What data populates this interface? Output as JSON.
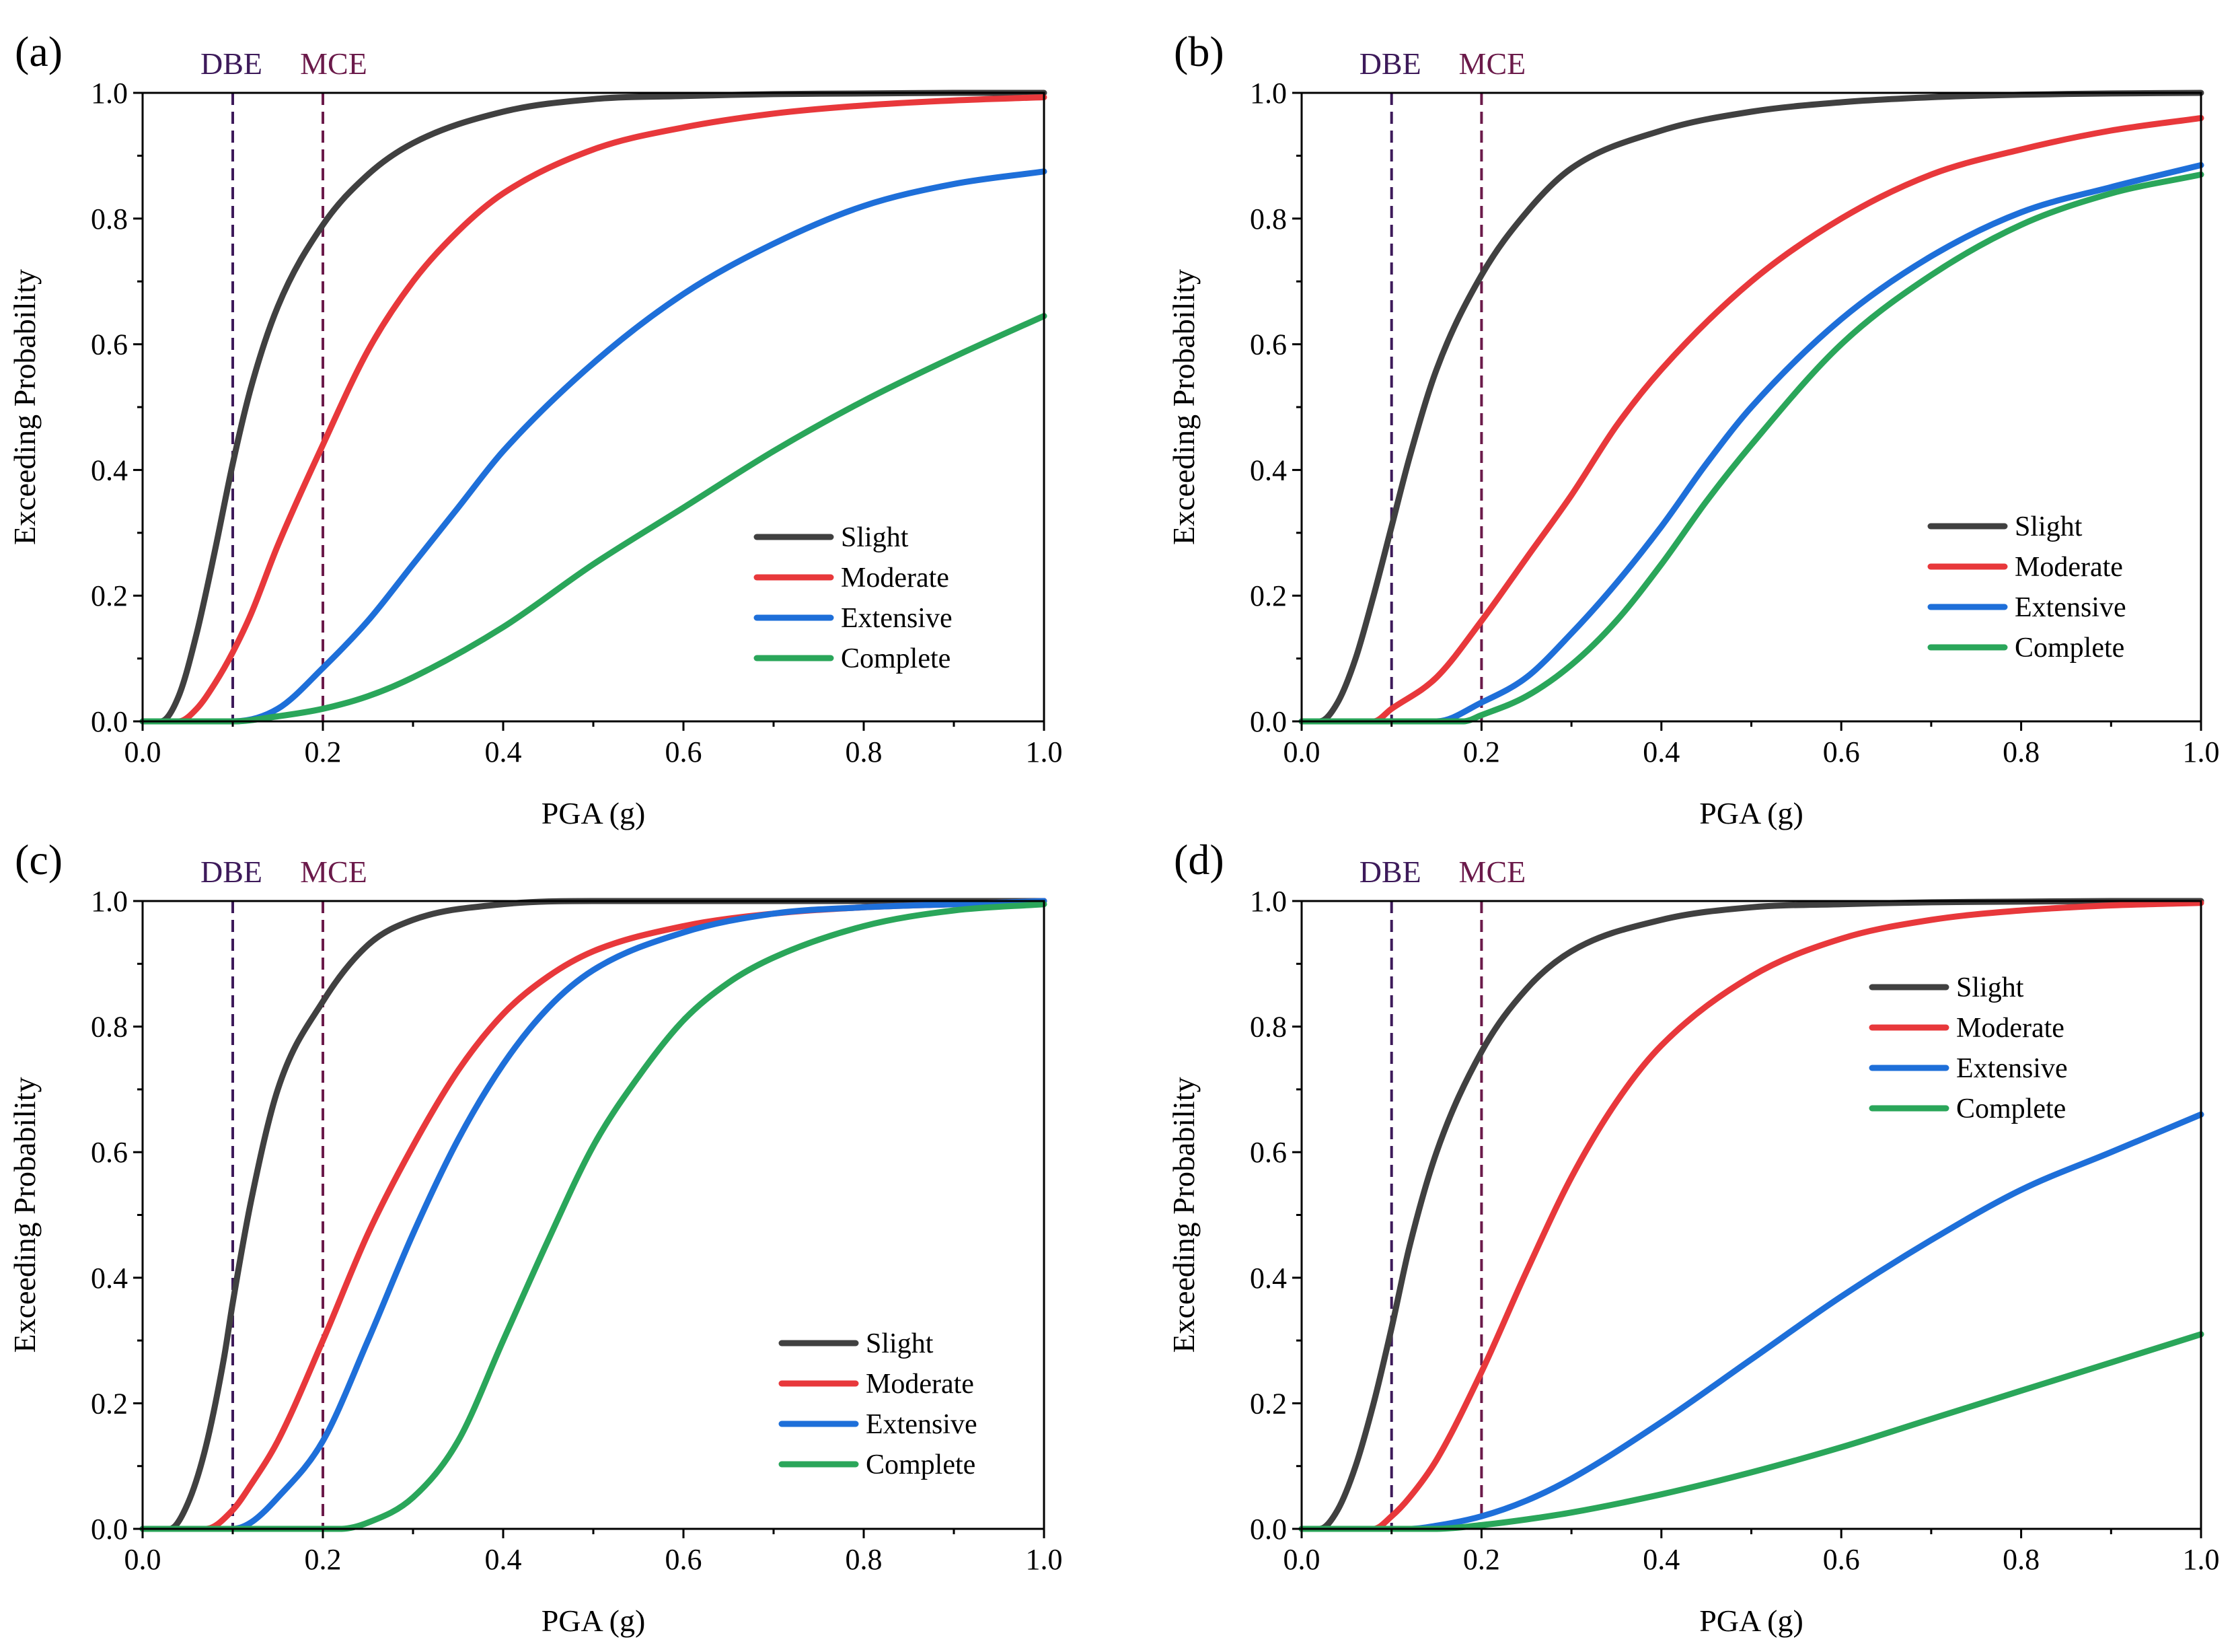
{
  "chart_data": [
    {
      "type": "line",
      "panel_label": "(a)",
      "xlabel": "PGA (g)",
      "ylabel": "Exceeding Probability",
      "xlim": [
        0,
        1
      ],
      "ylim": [
        0,
        1
      ],
      "x_ticks": [
        "0.0",
        "0.2",
        "0.4",
        "0.6",
        "0.8",
        "1.0"
      ],
      "y_ticks": [
        "0.0",
        "0.2",
        "0.4",
        "0.6",
        "0.8",
        "1.0"
      ],
      "grid": false,
      "legend_position": "center-right",
      "reference_lines": [
        {
          "label": "DBE",
          "x": 0.1,
          "color": "#3d1a5a"
        },
        {
          "label": "MCE",
          "x": 0.2,
          "color": "#6b1a4a"
        }
      ],
      "series": [
        {
          "name": "Slight",
          "color": "#404040",
          "x": [
            0,
            0.02,
            0.04,
            0.06,
            0.08,
            0.1,
            0.12,
            0.15,
            0.2,
            0.25,
            0.3,
            0.4,
            0.5,
            0.6,
            0.7,
            0.8,
            0.9,
            1.0
          ],
          "y": [
            0,
            0.0,
            0.04,
            0.14,
            0.27,
            0.41,
            0.53,
            0.66,
            0.79,
            0.87,
            0.92,
            0.97,
            0.99,
            0.995,
            0.998,
            0.999,
            1.0,
            1.0
          ]
        },
        {
          "name": "Moderate",
          "color": "#e8383b",
          "x": [
            0,
            0.04,
            0.06,
            0.08,
            0.1,
            0.12,
            0.15,
            0.2,
            0.25,
            0.3,
            0.35,
            0.4,
            0.5,
            0.6,
            0.7,
            0.8,
            0.9,
            1.0
          ],
          "y": [
            0,
            0.0,
            0.02,
            0.06,
            0.11,
            0.17,
            0.28,
            0.44,
            0.59,
            0.7,
            0.78,
            0.84,
            0.91,
            0.945,
            0.967,
            0.98,
            0.988,
            0.993
          ]
        },
        {
          "name": "Extensive",
          "color": "#1e6fd9",
          "x": [
            0,
            0.1,
            0.15,
            0.2,
            0.25,
            0.3,
            0.35,
            0.4,
            0.5,
            0.6,
            0.7,
            0.8,
            0.9,
            1.0
          ],
          "y": [
            0,
            0.0,
            0.02,
            0.085,
            0.16,
            0.25,
            0.34,
            0.43,
            0.57,
            0.68,
            0.76,
            0.82,
            0.855,
            0.875
          ]
        },
        {
          "name": "Complete",
          "color": "#2aa65a",
          "x": [
            0,
            0.1,
            0.15,
            0.2,
            0.25,
            0.3,
            0.4,
            0.5,
            0.6,
            0.7,
            0.8,
            0.9,
            1.0
          ],
          "y": [
            0,
            0.0,
            0.008,
            0.02,
            0.04,
            0.07,
            0.15,
            0.25,
            0.34,
            0.43,
            0.51,
            0.58,
            0.645
          ]
        }
      ]
    },
    {
      "type": "line",
      "panel_label": "(b)",
      "xlabel": "PGA (g)",
      "ylabel": "Exceeding Probability",
      "xlim": [
        0,
        1
      ],
      "ylim": [
        0,
        1
      ],
      "x_ticks": [
        "0.0",
        "0.2",
        "0.4",
        "0.6",
        "0.8",
        "1.0"
      ],
      "y_ticks": [
        "0.0",
        "0.2",
        "0.4",
        "0.6",
        "0.8",
        "1.0"
      ],
      "grid": false,
      "legend_position": "center-right",
      "reference_lines": [
        {
          "label": "DBE",
          "x": 0.1,
          "color": "#3d1a5a"
        },
        {
          "label": "MCE",
          "x": 0.2,
          "color": "#6b1a4a"
        }
      ],
      "series": [
        {
          "name": "Slight",
          "color": "#404040",
          "x": [
            0,
            0.02,
            0.04,
            0.06,
            0.08,
            0.1,
            0.12,
            0.15,
            0.2,
            0.25,
            0.3,
            0.4,
            0.5,
            0.6,
            0.7,
            0.8,
            0.9,
            1.0
          ],
          "y": [
            0,
            0.0,
            0.03,
            0.1,
            0.2,
            0.31,
            0.42,
            0.56,
            0.71,
            0.81,
            0.88,
            0.94,
            0.97,
            0.985,
            0.993,
            0.997,
            0.999,
            1.0
          ]
        },
        {
          "name": "Moderate",
          "color": "#e8383b",
          "x": [
            0,
            0.08,
            0.1,
            0.15,
            0.2,
            0.25,
            0.3,
            0.35,
            0.4,
            0.5,
            0.6,
            0.7,
            0.8,
            0.9,
            1.0
          ],
          "y": [
            0,
            0.0,
            0.02,
            0.07,
            0.16,
            0.26,
            0.36,
            0.47,
            0.56,
            0.7,
            0.8,
            0.87,
            0.91,
            0.94,
            0.96
          ]
        },
        {
          "name": "Extensive",
          "color": "#1e6fd9",
          "x": [
            0,
            0.15,
            0.2,
            0.25,
            0.3,
            0.35,
            0.4,
            0.45,
            0.5,
            0.6,
            0.7,
            0.8,
            0.9,
            1.0
          ],
          "y": [
            0,
            0.0,
            0.03,
            0.07,
            0.14,
            0.22,
            0.31,
            0.41,
            0.5,
            0.64,
            0.74,
            0.81,
            0.85,
            0.885
          ]
        },
        {
          "name": "Complete",
          "color": "#2aa65a",
          "x": [
            0,
            0.18,
            0.2,
            0.25,
            0.3,
            0.35,
            0.4,
            0.45,
            0.5,
            0.6,
            0.7,
            0.8,
            0.9,
            1.0
          ],
          "y": [
            0,
            0.0,
            0.01,
            0.04,
            0.09,
            0.16,
            0.25,
            0.35,
            0.44,
            0.6,
            0.71,
            0.79,
            0.84,
            0.87
          ]
        }
      ]
    },
    {
      "type": "line",
      "panel_label": "(c)",
      "xlabel": "PGA (g)",
      "ylabel": "Exceeding Probability",
      "xlim": [
        0,
        1
      ],
      "ylim": [
        0,
        1
      ],
      "x_ticks": [
        "0.0",
        "0.2",
        "0.4",
        "0.6",
        "0.8",
        "1.0"
      ],
      "y_ticks": [
        "0.0",
        "0.2",
        "0.4",
        "0.6",
        "0.8",
        "1.0"
      ],
      "grid": false,
      "legend_position": "lower-right",
      "reference_lines": [
        {
          "label": "DBE",
          "x": 0.1,
          "color": "#3d1a5a"
        },
        {
          "label": "MCE",
          "x": 0.2,
          "color": "#6b1a4a"
        }
      ],
      "series": [
        {
          "name": "Slight",
          "color": "#404040",
          "x": [
            0,
            0.03,
            0.05,
            0.07,
            0.09,
            0.1,
            0.12,
            0.15,
            0.2,
            0.25,
            0.3,
            0.4,
            0.5,
            0.6,
            0.7,
            1.0
          ],
          "y": [
            0,
            0.0,
            0.04,
            0.13,
            0.27,
            0.36,
            0.52,
            0.7,
            0.84,
            0.93,
            0.97,
            0.995,
            1.0,
            1.0,
            1.0,
            1.0
          ]
        },
        {
          "name": "Moderate",
          "color": "#e8383b",
          "x": [
            0,
            0.07,
            0.1,
            0.12,
            0.15,
            0.2,
            0.25,
            0.3,
            0.35,
            0.4,
            0.45,
            0.5,
            0.6,
            0.7,
            0.8,
            0.9,
            1.0
          ],
          "y": [
            0,
            0.0,
            0.03,
            0.07,
            0.14,
            0.3,
            0.47,
            0.61,
            0.73,
            0.82,
            0.88,
            0.92,
            0.96,
            0.98,
            0.99,
            0.995,
            1.0
          ]
        },
        {
          "name": "Extensive",
          "color": "#1e6fd9",
          "x": [
            0,
            0.1,
            0.12,
            0.15,
            0.2,
            0.25,
            0.3,
            0.35,
            0.4,
            0.45,
            0.5,
            0.6,
            0.7,
            0.8,
            0.9,
            1.0
          ],
          "y": [
            0,
            0.0,
            0.01,
            0.05,
            0.14,
            0.3,
            0.47,
            0.62,
            0.74,
            0.83,
            0.89,
            0.95,
            0.98,
            0.99,
            0.995,
            1.0
          ]
        },
        {
          "name": "Complete",
          "color": "#2aa65a",
          "x": [
            0,
            0.22,
            0.25,
            0.3,
            0.35,
            0.4,
            0.45,
            0.5,
            0.55,
            0.6,
            0.65,
            0.7,
            0.8,
            0.9,
            1.0
          ],
          "y": [
            0,
            0.0,
            0.01,
            0.05,
            0.14,
            0.3,
            0.46,
            0.61,
            0.72,
            0.81,
            0.87,
            0.91,
            0.96,
            0.985,
            0.995
          ]
        }
      ]
    },
    {
      "type": "line",
      "panel_label": "(d)",
      "xlabel": "PGA (g)",
      "ylabel": "Exceeding Probability",
      "xlim": [
        0,
        1
      ],
      "ylim": [
        0,
        1
      ],
      "x_ticks": [
        "0.0",
        "0.2",
        "0.4",
        "0.6",
        "0.8",
        "1.0"
      ],
      "y_ticks": [
        "0.0",
        "0.2",
        "0.4",
        "0.6",
        "0.8",
        "1.0"
      ],
      "grid": false,
      "legend_position": "upper-right",
      "reference_lines": [
        {
          "label": "DBE",
          "x": 0.1,
          "color": "#3d1a5a"
        },
        {
          "label": "MCE",
          "x": 0.2,
          "color": "#6b1a4a"
        }
      ],
      "series": [
        {
          "name": "Slight",
          "color": "#404040",
          "x": [
            0,
            0.02,
            0.04,
            0.06,
            0.08,
            0.1,
            0.12,
            0.15,
            0.2,
            0.25,
            0.3,
            0.4,
            0.5,
            0.6,
            0.7,
            0.8,
            0.9,
            1.0
          ],
          "y": [
            0,
            0.0,
            0.03,
            0.1,
            0.2,
            0.32,
            0.45,
            0.6,
            0.76,
            0.86,
            0.92,
            0.97,
            0.99,
            0.995,
            0.998,
            0.999,
            1.0,
            1.0
          ]
        },
        {
          "name": "Moderate",
          "color": "#e8383b",
          "x": [
            0,
            0.08,
            0.1,
            0.12,
            0.15,
            0.2,
            0.25,
            0.3,
            0.35,
            0.4,
            0.5,
            0.6,
            0.7,
            0.8,
            0.9,
            1.0
          ],
          "y": [
            0,
            0.0,
            0.02,
            0.05,
            0.11,
            0.25,
            0.41,
            0.56,
            0.68,
            0.77,
            0.88,
            0.94,
            0.97,
            0.985,
            0.993,
            0.997
          ]
        },
        {
          "name": "Extensive",
          "color": "#1e6fd9",
          "x": [
            0,
            0.12,
            0.15,
            0.2,
            0.25,
            0.3,
            0.4,
            0.5,
            0.6,
            0.7,
            0.8,
            0.9,
            1.0
          ],
          "y": [
            0,
            0.0,
            0.005,
            0.02,
            0.045,
            0.08,
            0.17,
            0.27,
            0.37,
            0.46,
            0.54,
            0.6,
            0.66
          ]
        },
        {
          "name": "Complete",
          "color": "#2aa65a",
          "x": [
            0,
            0.15,
            0.2,
            0.25,
            0.3,
            0.4,
            0.5,
            0.6,
            0.7,
            0.8,
            0.9,
            1.0
          ],
          "y": [
            0,
            0.0,
            0.006,
            0.015,
            0.026,
            0.055,
            0.09,
            0.13,
            0.175,
            0.22,
            0.265,
            0.31
          ]
        }
      ]
    }
  ]
}
